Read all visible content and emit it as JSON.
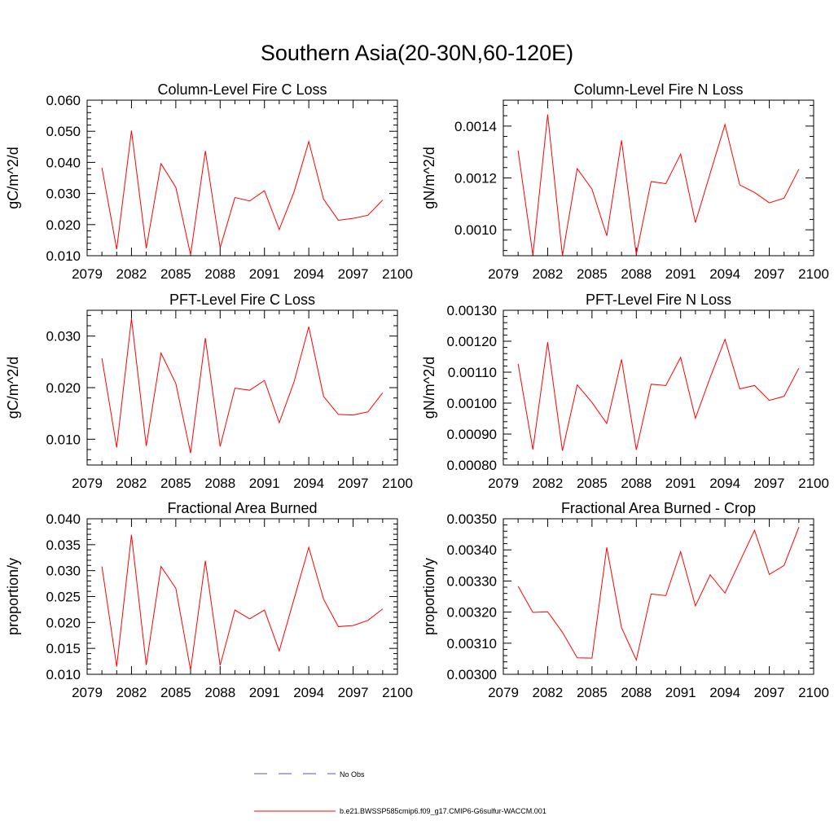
{
  "figure": {
    "title": "Southern Asia(20-30N,60-120E)"
  },
  "legend": {
    "entries": [
      {
        "label": "No Obs",
        "color": "#5555cc",
        "style": "dashed"
      },
      {
        "label": "b.e21.BWSSP585cmip6.f09_g17.CMIP6-G6sulfur-WACCM.001",
        "color": "#ff0000",
        "style": "solid"
      }
    ]
  },
  "chart_data": [
    {
      "type": "line",
      "title": "Column-Level Fire C Loss",
      "ylabel": "gC/m^2/d",
      "xlim": [
        2079,
        2100
      ],
      "ylim": [
        0.01,
        0.06
      ],
      "xticks": [
        "2079",
        "2082",
        "2085",
        "2088",
        "2091",
        "2094",
        "2097",
        "2100"
      ],
      "yticks": [
        "0.010",
        "0.020",
        "0.030",
        "0.040",
        "0.050",
        "0.060"
      ],
      "series": [
        {
          "color": "#ff0000",
          "x": [
            2080,
            2081,
            2082,
            2083,
            2084,
            2085,
            2086,
            2087,
            2088,
            2089,
            2090,
            2091,
            2092,
            2093,
            2094,
            2095,
            2096,
            2097,
            2098,
            2099
          ],
          "y": [
            0.0383,
            0.0121,
            0.0502,
            0.0124,
            0.0396,
            0.032,
            0.0103,
            0.0437,
            0.0125,
            0.0287,
            0.0276,
            0.0309,
            0.0184,
            0.0305,
            0.0467,
            0.0282,
            0.0214,
            0.022,
            0.023,
            0.0279
          ]
        }
      ]
    },
    {
      "type": "line",
      "title": "Column-Level Fire N Loss",
      "ylabel": "gN/m^2/d",
      "xlim": [
        2079,
        2100
      ],
      "ylim": [
        0.0009,
        0.0015
      ],
      "xticks": [
        "2079",
        "2082",
        "2085",
        "2088",
        "2091",
        "2094",
        "2097",
        "2100"
      ],
      "yticks": [
        "0.0010",
        "0.0012",
        "0.0014"
      ],
      "series": [
        {
          "color": "#ff0000",
          "x": [
            2080,
            2081,
            2082,
            2083,
            2084,
            2085,
            2086,
            2087,
            2088,
            2089,
            2090,
            2091,
            2092,
            2093,
            2094,
            2095,
            2096,
            2097,
            2098,
            2099
          ],
          "y": [
            0.001306,
            0.000902,
            0.001445,
            0.0009,
            0.001236,
            0.001157,
            0.000977,
            0.001345,
            0.000905,
            0.001186,
            0.001178,
            0.001292,
            0.001028,
            0.001218,
            0.001406,
            0.001173,
            0.001144,
            0.001104,
            0.001122,
            0.001234
          ]
        }
      ]
    },
    {
      "type": "line",
      "title": "PFT-Level Fire C Loss",
      "ylabel": "gC/m^2/d",
      "xlim": [
        2079,
        2100
      ],
      "ylim": [
        0.005,
        0.035
      ],
      "xticks": [
        "2079",
        "2082",
        "2085",
        "2088",
        "2091",
        "2094",
        "2097",
        "2100"
      ],
      "yticks": [
        "0.010",
        "0.020",
        "0.030"
      ],
      "series": [
        {
          "color": "#ff0000",
          "x": [
            2080,
            2081,
            2082,
            2083,
            2084,
            2085,
            2086,
            2087,
            2088,
            2089,
            2090,
            2091,
            2092,
            2093,
            2094,
            2095,
            2096,
            2097,
            2098,
            2099
          ],
          "y": [
            0.0257,
            0.0084,
            0.0334,
            0.0087,
            0.0267,
            0.0208,
            0.0073,
            0.0296,
            0.0086,
            0.0199,
            0.0195,
            0.0214,
            0.0132,
            0.0211,
            0.0318,
            0.0183,
            0.0148,
            0.0147,
            0.0153,
            0.019
          ]
        }
      ]
    },
    {
      "type": "line",
      "title": "PFT-Level Fire N Loss",
      "ylabel": "gN/m^2/d",
      "xlim": [
        2079,
        2100
      ],
      "ylim": [
        0.0008,
        0.0013
      ],
      "xticks": [
        "2079",
        "2082",
        "2085",
        "2088",
        "2091",
        "2094",
        "2097",
        "2100"
      ],
      "yticks": [
        "0.00080",
        "0.00090",
        "0.00100",
        "0.00110",
        "0.00120",
        "0.00130"
      ],
      "series": [
        {
          "color": "#ff0000",
          "x": [
            2080,
            2081,
            2082,
            2083,
            2084,
            2085,
            2086,
            2087,
            2088,
            2089,
            2090,
            2091,
            2092,
            2093,
            2094,
            2095,
            2096,
            2097,
            2098,
            2099
          ],
          "y": [
            0.001127,
            0.00085,
            0.001197,
            0.000846,
            0.001059,
            0.001002,
            0.000934,
            0.001141,
            0.000849,
            0.001061,
            0.001057,
            0.001148,
            0.000951,
            0.001083,
            0.001206,
            0.001046,
            0.001057,
            0.001009,
            0.001022,
            0.001113
          ]
        }
      ]
    },
    {
      "type": "line",
      "title": "Fractional Area Burned",
      "ylabel": "proportion/y",
      "xlim": [
        2079,
        2100
      ],
      "ylim": [
        0.01,
        0.04
      ],
      "xticks": [
        "2079",
        "2082",
        "2085",
        "2088",
        "2091",
        "2094",
        "2097",
        "2100"
      ],
      "yticks": [
        "0.010",
        "0.015",
        "0.020",
        "0.025",
        "0.030",
        "0.035",
        "0.040"
      ],
      "series": [
        {
          "color": "#ff0000",
          "x": [
            2080,
            2081,
            2082,
            2083,
            2084,
            2085,
            2086,
            2087,
            2088,
            2089,
            2090,
            2091,
            2092,
            2093,
            2094,
            2095,
            2096,
            2097,
            2098,
            2099
          ],
          "y": [
            0.0308,
            0.0115,
            0.0369,
            0.0118,
            0.0308,
            0.0266,
            0.0108,
            0.0319,
            0.0117,
            0.0224,
            0.0207,
            0.0224,
            0.0145,
            0.0245,
            0.0345,
            0.0245,
            0.0192,
            0.0194,
            0.0204,
            0.0226
          ]
        }
      ]
    },
    {
      "type": "line",
      "title": "Fractional Area Burned - Crop",
      "ylabel": "proportion/y",
      "xlim": [
        2079,
        2100
      ],
      "ylim": [
        0.003,
        0.0035
      ],
      "xticks": [
        "2079",
        "2082",
        "2085",
        "2088",
        "2091",
        "2094",
        "2097",
        "2100"
      ],
      "yticks": [
        "0.00300",
        "0.00310",
        "0.00320",
        "0.00330",
        "0.00340",
        "0.00350"
      ],
      "series": [
        {
          "color": "#ff0000",
          "x": [
            2080,
            2081,
            2082,
            2083,
            2084,
            2085,
            2086,
            2087,
            2088,
            2089,
            2090,
            2091,
            2092,
            2093,
            2094,
            2095,
            2096,
            2097,
            2098,
            2099
          ],
          "y": [
            0.003283,
            0.003199,
            0.003201,
            0.003135,
            0.003053,
            0.003052,
            0.003408,
            0.00315,
            0.003046,
            0.003258,
            0.003253,
            0.003394,
            0.00322,
            0.00332,
            0.003261,
            0.003362,
            0.003463,
            0.003321,
            0.00335,
            0.003473
          ]
        }
      ]
    }
  ]
}
